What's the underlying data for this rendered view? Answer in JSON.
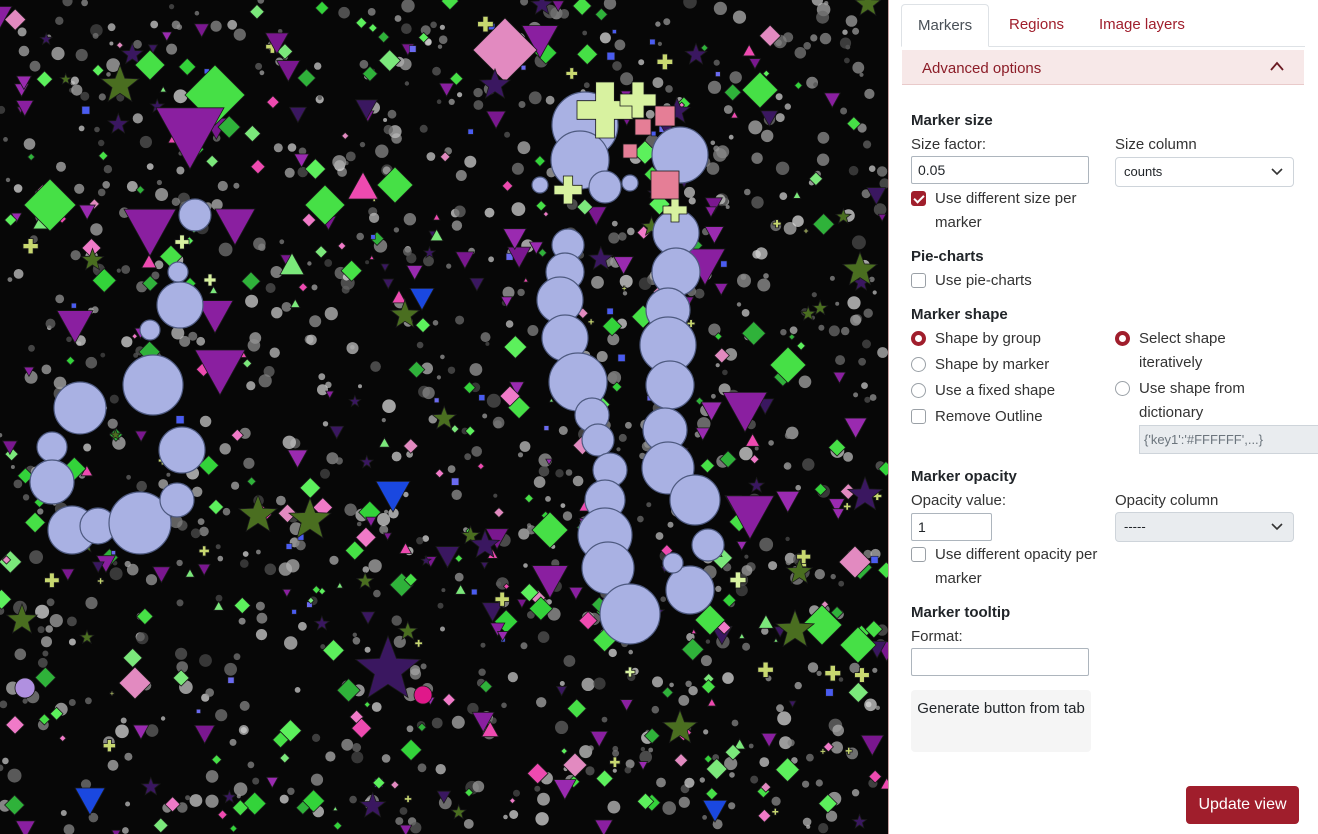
{
  "tabs": [
    {
      "label": "Markers",
      "active": true
    },
    {
      "label": "Regions",
      "active": false
    },
    {
      "label": "Image layers",
      "active": false
    }
  ],
  "advanced": {
    "label": "Advanced options",
    "icon": "chevron-up-icon"
  },
  "marker_size": {
    "heading": "Marker size",
    "size_factor_label": "Size factor:",
    "size_factor_value": "0.05",
    "size_column_label": "Size column",
    "size_column_value": "counts",
    "different_size_label": "Use different size per marker",
    "different_size_checked": true
  },
  "pie": {
    "heading": "Pie-charts",
    "use_label": "Use pie-charts",
    "checked": false
  },
  "shape": {
    "heading": "Marker shape",
    "by_group": "Shape by group",
    "by_marker": "Shape by marker",
    "fixed": "Use a fixed shape",
    "remove_outline": "Remove Outline",
    "select_iter": "Select shape iteratively",
    "from_dict": "Use shape from dictionary",
    "dict_placeholder": "{'key1':'#FFFFFF',...}"
  },
  "opacity": {
    "heading": "Marker opacity",
    "value_label": "Opacity value:",
    "value": "1",
    "column_label": "Opacity column",
    "column_value": "-----",
    "different_label": "Use different opacity per marker",
    "checked": false
  },
  "tooltip": {
    "heading": "Marker tooltip",
    "format_label": "Format:",
    "format_value": ""
  },
  "buttons": {
    "generate": "Generate button from tab",
    "update": "Update view"
  },
  "colors": {
    "accent": "#a01e2c",
    "circle_marker": "#a9b1e3",
    "diamond_marker": "#46e046",
    "triangle_marker": "#8a1fa0",
    "star_marker": "#4a6e20",
    "cross_marker": "#d8f2a0",
    "pink_marker": "#e28ac0",
    "viewer_bg": "#070707"
  }
}
